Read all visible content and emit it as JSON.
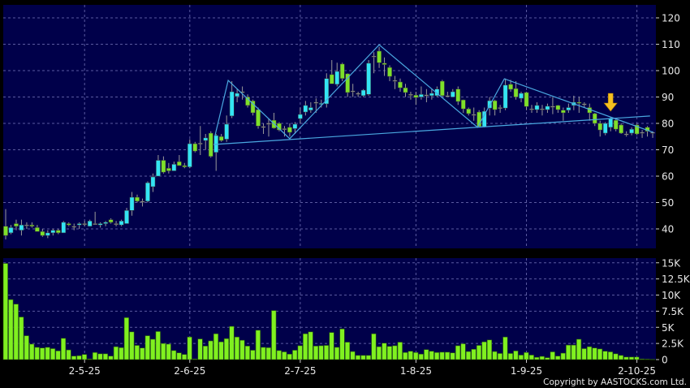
{
  "copyright": "Copyright by AASTOCKS.com Ltd.",
  "colors": {
    "background": "#000000",
    "plot_background": "#00004a",
    "grid": "#5a5aa0",
    "up_candle": "#33e4f4",
    "down_candle": "#7ee02a",
    "doji": "#a8a8a8",
    "volume_bar": "#80f020",
    "trendline": "#4aa8e0",
    "arrow": "#f5c020"
  },
  "chart_data": [
    {
      "type": "candlestick",
      "ylim": [
        32,
        124
      ],
      "y_ticks": [
        40,
        50,
        60,
        70,
        80,
        90,
        100,
        110,
        120
      ],
      "y_tick_labels": [
        "40",
        "50",
        "60",
        "70",
        "80",
        "90",
        "100",
        "110",
        "120"
      ],
      "x_ticks": [
        {
          "index": 15,
          "label": "2-5-25"
        },
        {
          "index": 35,
          "label": "2-6-25"
        },
        {
          "index": 56,
          "label": "2-7-25"
        },
        {
          "index": 78,
          "label": "1-8-25"
        },
        {
          "index": 99,
          "label": "1-9-25"
        },
        {
          "index": 120,
          "label": "2-10-25"
        }
      ],
      "grid": true,
      "candles_ohlc": [
        [
          41,
          47.5,
          36,
          37.5
        ],
        [
          38.5,
          41.5,
          38,
          40.5
        ],
        [
          42,
          43.5,
          39.5,
          41
        ],
        [
          39.5,
          43.5,
          37.5,
          41.5
        ],
        [
          41.5,
          42.5,
          40,
          41.5
        ],
        [
          41.5,
          42.5,
          40.5,
          41
        ],
        [
          40.5,
          41.5,
          39,
          39
        ],
        [
          39,
          40,
          37,
          37.5
        ],
        [
          37.5,
          39.5,
          36.5,
          38.5
        ],
        [
          38.5,
          40,
          37.5,
          39.5
        ],
        [
          39.5,
          40,
          38,
          38.5
        ],
        [
          38.5,
          43,
          38.5,
          42.5
        ],
        [
          42,
          42.5,
          41,
          41.5
        ],
        [
          41,
          42,
          39.5,
          41
        ],
        [
          41.5,
          42.5,
          40,
          42
        ],
        [
          42,
          43,
          41,
          42
        ],
        [
          41,
          43.5,
          41,
          43
        ],
        [
          42,
          46.5,
          42,
          42
        ],
        [
          41.5,
          42.5,
          40.5,
          42
        ],
        [
          42,
          43,
          41,
          42.5
        ],
        [
          43.5,
          44,
          42,
          42.5
        ],
        [
          42,
          43,
          41,
          42
        ],
        [
          41.5,
          43.5,
          41,
          43
        ],
        [
          42,
          48,
          42,
          47
        ],
        [
          47,
          54,
          45,
          52
        ],
        [
          52,
          53,
          50,
          50.5
        ],
        [
          50.5,
          51.5,
          48.5,
          50.5
        ],
        [
          50.5,
          58,
          50,
          57.5
        ],
        [
          56,
          61,
          54,
          59.7
        ],
        [
          60,
          68,
          60,
          66
        ],
        [
          66,
          67.5,
          61,
          61.5
        ],
        [
          63,
          65,
          61,
          62
        ],
        [
          62,
          65.5,
          62,
          64.5
        ],
        [
          65.5,
          68,
          64,
          64
        ],
        [
          64,
          65,
          63,
          63.5
        ],
        [
          63.5,
          74,
          63,
          72.3
        ],
        [
          72.3,
          73,
          69,
          69.5
        ],
        [
          72.5,
          79,
          68,
          72.5
        ],
        [
          73.5,
          76,
          70,
          74.5
        ],
        [
          76.3,
          77,
          67,
          67.5
        ],
        [
          69,
          76,
          62,
          75.4
        ],
        [
          75,
          76,
          73,
          73.5
        ],
        [
          74,
          83,
          73,
          79.7
        ],
        [
          82.8,
          96,
          82,
          92
        ],
        [
          90.2,
          93,
          88,
          91.4
        ],
        [
          92,
          94,
          89,
          92
        ],
        [
          90,
          91,
          86,
          86.8
        ],
        [
          88.5,
          89,
          83,
          84
        ],
        [
          85.2,
          86,
          78,
          79
        ],
        [
          78.8,
          80,
          76,
          78.8
        ],
        [
          80,
          82,
          75,
          80
        ],
        [
          81.2,
          84,
          78,
          78.2
        ],
        [
          80,
          80.5,
          77,
          77.5
        ],
        [
          78,
          79,
          75,
          78
        ],
        [
          78.5,
          80,
          75,
          76.6
        ],
        [
          78,
          80.5,
          76,
          79.7
        ],
        [
          81.8,
          86,
          80,
          83.4
        ],
        [
          84.3,
          88.5,
          83,
          86.8
        ],
        [
          85,
          88,
          84,
          86
        ],
        [
          88,
          89.5,
          84,
          88
        ],
        [
          87.2,
          89,
          86,
          87.6
        ],
        [
          87.4,
          99,
          86,
          97
        ],
        [
          98.5,
          104,
          95,
          95
        ],
        [
          94.8,
          103,
          94,
          99.7
        ],
        [
          102.5,
          103,
          96,
          97
        ],
        [
          98.8,
          99,
          90,
          91.7
        ],
        [
          92.3,
          95,
          90,
          92.3
        ],
        [
          91.4,
          92,
          90,
          91.4
        ],
        [
          90.5,
          93,
          90,
          92.6
        ],
        [
          91,
          104,
          90.5,
          102.8
        ],
        [
          105.5,
          107,
          99,
          105.5
        ],
        [
          107.4,
          109,
          101,
          103
        ],
        [
          102.8,
          105,
          98,
          102.3
        ],
        [
          101.2,
          102,
          96,
          97.8
        ],
        [
          96.3,
          98,
          93,
          96
        ],
        [
          95.7,
          97,
          92,
          93.5
        ],
        [
          93.5,
          95,
          90,
          91.7
        ],
        [
          91,
          92,
          89,
          91
        ],
        [
          90.7,
          92,
          87,
          89.8
        ],
        [
          90,
          94,
          89,
          91
        ],
        [
          90.8,
          93,
          88,
          90.8
        ],
        [
          90.5,
          93,
          89,
          91.4
        ],
        [
          90.5,
          94,
          90,
          93
        ],
        [
          96,
          96.5,
          90,
          90.5
        ],
        [
          90.5,
          92,
          90,
          90.5
        ],
        [
          90,
          93,
          90,
          92
        ],
        [
          93,
          94,
          87,
          88.3
        ],
        [
          88.9,
          89,
          84,
          85.5
        ],
        [
          85.5,
          86,
          83,
          83.7
        ],
        [
          83.4,
          86,
          81,
          83.4
        ],
        [
          84.3,
          85,
          78.5,
          78.8
        ],
        [
          78.8,
          86,
          78.5,
          84.6
        ],
        [
          85.8,
          90,
          83,
          88.6
        ],
        [
          88.6,
          89,
          83,
          85.2
        ],
        [
          86,
          87,
          84,
          86
        ],
        [
          85.8,
          97,
          85,
          94.5
        ],
        [
          94.8,
          96.5,
          92,
          92.9
        ],
        [
          93.2,
          96,
          89,
          90
        ],
        [
          89.5,
          92,
          88,
          91.4
        ],
        [
          91.7,
          92,
          85,
          86.4
        ],
        [
          85.5,
          87,
          84,
          85.5
        ],
        [
          85.2,
          88,
          84,
          86.8
        ],
        [
          85.5,
          87,
          83,
          85.5
        ],
        [
          85.2,
          87.5,
          84,
          86.5
        ],
        [
          86.5,
          90,
          83.5,
          86.5
        ],
        [
          86.8,
          87,
          84,
          85.2
        ],
        [
          85,
          86,
          81,
          84
        ],
        [
          85,
          87.5,
          84,
          86
        ],
        [
          86.8,
          90.5,
          85,
          88
        ],
        [
          88,
          90,
          84,
          87.6
        ],
        [
          87.4,
          88,
          86,
          87.2
        ],
        [
          86,
          87.5,
          81,
          84
        ],
        [
          83.7,
          84,
          79,
          80
        ],
        [
          80,
          81,
          75,
          77.5
        ],
        [
          76.3,
          80.5,
          75.5,
          80
        ],
        [
          78.5,
          82.5,
          77,
          81.8
        ],
        [
          81.2,
          82,
          77,
          77.8
        ],
        [
          79.4,
          80,
          76,
          76.3
        ],
        [
          76,
          77,
          75,
          76
        ],
        [
          76.3,
          78.5,
          75.5,
          77.8
        ],
        [
          79.4,
          80,
          75.5,
          76
        ],
        [
          76.6,
          77.5,
          74.5,
          76.6
        ],
        [
          78.5,
          79,
          75,
          77
        ],
        [
          76.6,
          77,
          74.5,
          76.6
        ]
      ],
      "trendlines": [
        {
          "kind": "zigzag",
          "points": [
            [
              39.8,
              75.4
            ],
            [
              42.3,
              96.3
            ],
            [
              54,
              74.2
            ],
            [
              71,
              109.8
            ],
            [
              89.7,
              78.5
            ],
            [
              94.8,
              96.9
            ],
            [
              123.1,
              76.6
            ]
          ]
        },
        {
          "kind": "support",
          "points": [
            [
              39.5,
              72
            ],
            [
              122.5,
              82.8
            ]
          ]
        }
      ],
      "annotation": {
        "type": "down-arrow",
        "index": 115,
        "price": 84
      }
    },
    {
      "type": "bar",
      "ylim": [
        0,
        15500
      ],
      "y_ticks": [
        0,
        2500,
        5000,
        7500,
        10000,
        12500,
        15000
      ],
      "y_tick_labels": [
        "0",
        "2.5K",
        "5K",
        "7.5K",
        "10K",
        "12.5K",
        "15K"
      ],
      "grid": true,
      "volume": [
        14900,
        9300,
        8600,
        6600,
        3700,
        2400,
        1900,
        1800,
        1900,
        1700,
        1350,
        3300,
        1500,
        550,
        600,
        800,
        100,
        1100,
        900,
        900,
        550,
        2000,
        1850,
        6500,
        4300,
        2200,
        1800,
        3700,
        3150,
        4350,
        2500,
        2400,
        1400,
        1050,
        800,
        3500,
        100,
        3200,
        2100,
        2900,
        4000,
        2750,
        3250,
        5150,
        3500,
        3000,
        2100,
        1450,
        4550,
        1900,
        1850,
        7600,
        1400,
        1200,
        850,
        1450,
        2150,
        4000,
        4300,
        2100,
        2150,
        2200,
        4200,
        1900,
        4750,
        2700,
        1250,
        650,
        650,
        650,
        4000,
        2000,
        2550,
        2050,
        2150,
        2700,
        1100,
        1300,
        1100,
        850,
        1550,
        1300,
        1100,
        1150,
        1150,
        1050,
        2150,
        2450,
        1250,
        1600,
        2200,
        2750,
        3050,
        1250,
        950,
        3500,
        950,
        1350,
        700,
        1100,
        700,
        350,
        500,
        300,
        1200,
        550,
        1000,
        2250,
        2250,
        3150,
        1700,
        2000,
        1800,
        1650,
        1300,
        1200,
        900,
        650,
        400,
        400,
        400,
        100,
        80,
        50
      ]
    }
  ]
}
